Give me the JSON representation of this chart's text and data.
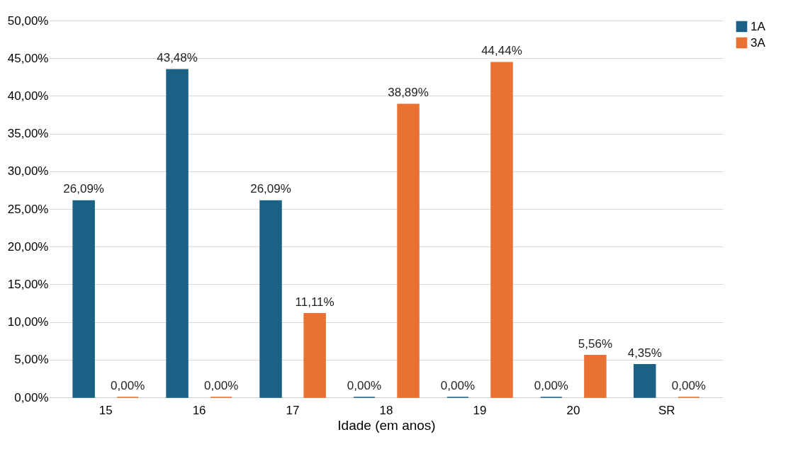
{
  "chart_data": {
    "type": "bar",
    "xlabel": "Idade (em anos)",
    "categories": [
      "15",
      "16",
      "17",
      "18",
      "19",
      "20",
      "SR"
    ],
    "series": [
      {
        "name": "1A",
        "color": "#1b6185",
        "values": [
          26.09,
          43.48,
          26.09,
          0,
          0,
          0,
          4.35
        ],
        "value_labels": [
          "26,09%",
          "43,48%",
          "26,09%",
          "0,00%",
          "0,00%",
          "0,00%",
          "4,35%"
        ]
      },
      {
        "name": "3A",
        "color": "#e97132",
        "values": [
          0,
          0,
          11.11,
          38.89,
          44.44,
          5.56,
          0
        ],
        "value_labels": [
          "0,00%",
          "0,00%",
          "11,11%",
          "38,89%",
          "44,44%",
          "5,56%",
          "0,00%"
        ]
      }
    ],
    "ylim": [
      0,
      50
    ],
    "yticks": [
      {
        "value": 0,
        "label": "0,00%"
      },
      {
        "value": 5,
        "label": "5,00%"
      },
      {
        "value": 10,
        "label": "10,00%"
      },
      {
        "value": 15,
        "label": "15,00%"
      },
      {
        "value": 20,
        "label": "20,00%"
      },
      {
        "value": 25,
        "label": "25,00%"
      },
      {
        "value": 30,
        "label": "30,00%"
      },
      {
        "value": 35,
        "label": "35,00%"
      },
      {
        "value": 40,
        "label": "40,00%"
      },
      {
        "value": 45,
        "label": "45,00%"
      },
      {
        "value": 50,
        "label": "50,00%"
      }
    ],
    "grid": "y",
    "legend": "right"
  }
}
